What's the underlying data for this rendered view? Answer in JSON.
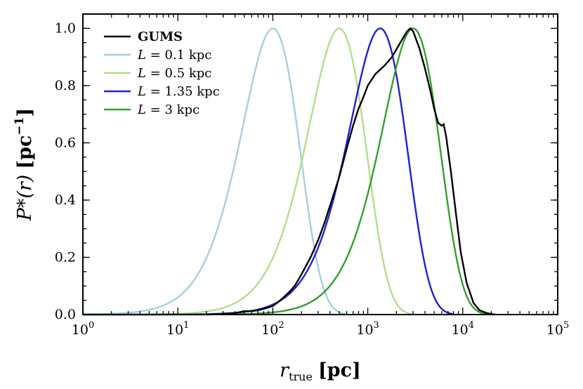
{
  "chart_data": {
    "type": "line",
    "title": "",
    "xlabel": {
      "main": "r",
      "sub": "true",
      "unit": "[pc]"
    },
    "ylabel": {
      "main": "P*(r)",
      "unit": "[pc",
      "unit_sup": "−1",
      "unit_close": "]"
    },
    "xscale": "log",
    "xlim": [
      1,
      100000
    ],
    "ylim": [
      0,
      1.05
    ],
    "x_ticks": [
      {
        "value": 1,
        "base": "10",
        "exp": "0"
      },
      {
        "value": 10,
        "base": "10",
        "exp": "1"
      },
      {
        "value": 100,
        "base": "10",
        "exp": "2"
      },
      {
        "value": 1000,
        "base": "10",
        "exp": "3"
      },
      {
        "value": 10000,
        "base": "10",
        "exp": "4"
      },
      {
        "value": 100000,
        "base": "10",
        "exp": "5"
      }
    ],
    "y_ticks": [
      {
        "value": 0,
        "label": "0.0"
      },
      {
        "value": 0.2,
        "label": "0.2"
      },
      {
        "value": 0.4,
        "label": "0.4"
      },
      {
        "value": 0.6,
        "label": "0.6"
      },
      {
        "value": 0.8,
        "label": "0.8"
      },
      {
        "value": 1.0,
        "label": "1.0"
      }
    ],
    "legend_position": "top-left",
    "series": [
      {
        "name": "GUMS",
        "color": "#000000",
        "points": [
          [
            20,
            0
          ],
          [
            40,
            0.005
          ],
          [
            50,
            0.012
          ],
          [
            60,
            0.012
          ],
          [
            70,
            0.015
          ],
          [
            80,
            0.02
          ],
          [
            90,
            0.025
          ],
          [
            100,
            0.03
          ],
          [
            110,
            0.04
          ],
          [
            120,
            0.05
          ],
          [
            130,
            0.06
          ],
          [
            150,
            0.08
          ],
          [
            170,
            0.1
          ],
          [
            200,
            0.14
          ],
          [
            250,
            0.2
          ],
          [
            300,
            0.26
          ],
          [
            350,
            0.32
          ],
          [
            400,
            0.38
          ],
          [
            500,
            0.48
          ],
          [
            600,
            0.58
          ],
          [
            700,
            0.66
          ],
          [
            800,
            0.72
          ],
          [
            900,
            0.76
          ],
          [
            1000,
            0.8
          ],
          [
            1200,
            0.84
          ],
          [
            1500,
            0.87
          ],
          [
            1800,
            0.9
          ],
          [
            2200,
            0.95
          ],
          [
            2600,
            0.99
          ],
          [
            2800,
            1.0
          ],
          [
            3000,
            0.99
          ],
          [
            3500,
            0.93
          ],
          [
            4000,
            0.86
          ],
          [
            4500,
            0.79
          ],
          [
            5000,
            0.72
          ],
          [
            5500,
            0.67
          ],
          [
            6000,
            0.66
          ],
          [
            6300,
            0.665
          ],
          [
            6700,
            0.62
          ],
          [
            7500,
            0.5
          ],
          [
            8500,
            0.35
          ],
          [
            9500,
            0.22
          ],
          [
            11000,
            0.11
          ],
          [
            13000,
            0.04
          ],
          [
            15000,
            0.015
          ],
          [
            18000,
            0.005
          ],
          [
            22000,
            0
          ]
        ]
      },
      {
        "name": "L = 0.1 kpc",
        "color": "#a6cee3",
        "L_kpc": 0.1
      },
      {
        "name": "L = 0.5 kpc",
        "color": "#b2df8a",
        "L_kpc": 0.5
      },
      {
        "name": "L = 1.35 kpc",
        "color": "#1f1fd6",
        "L_kpc": 1.35
      },
      {
        "name": "L = 3 kpc",
        "color": "#33a02c",
        "L_kpc": 3
      }
    ],
    "legend": [
      {
        "label": "GUMS",
        "color": "#000000"
      },
      {
        "prefix": "L",
        "label": " = 0.1 kpc",
        "color": "#a6cee3"
      },
      {
        "prefix": "L",
        "label": " = 0.5 kpc",
        "color": "#b2df8a"
      },
      {
        "prefix": "L",
        "label": " = 1.35 kpc",
        "color": "#1f1fd6"
      },
      {
        "prefix": "L",
        "label": " = 3 kpc",
        "color": "#33a02c"
      }
    ]
  }
}
